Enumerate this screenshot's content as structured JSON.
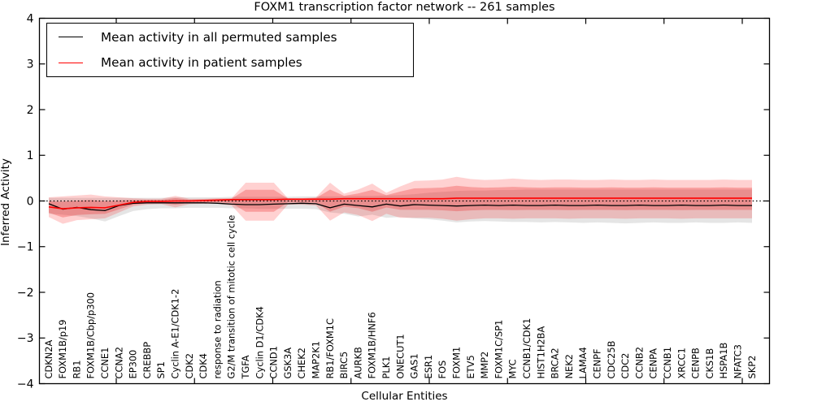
{
  "figure": {
    "title": "FOXM1 transcription factor network -- 261 samples",
    "xlabel": "Cellular Entities",
    "ylabel": "Inferred Activity"
  },
  "legend": {
    "position": "upper left",
    "entries": [
      {
        "label": "Mean activity in all permuted samples",
        "color": "#000000"
      },
      {
        "label": "Mean activity in patient samples",
        "color": "#ff0000"
      }
    ]
  },
  "chart_data": {
    "type": "line",
    "title": "FOXM1 transcription factor network -- 261 samples",
    "xlabel": "Cellular Entities",
    "ylabel": "Inferred Activity",
    "ylim": [
      -4,
      4
    ],
    "yticks": [
      4,
      3,
      2,
      1,
      0,
      -1,
      -2,
      -3,
      -4
    ],
    "grid": false,
    "legend_position": "upper left",
    "n_samples": 261,
    "zero_line": {
      "y": 0,
      "style": "dotted",
      "color": "#000000"
    },
    "categories": [
      "CDKN2A",
      "FOXM1B/p19",
      "RB1",
      "FOXM1B/Cbp/p300",
      "CCNE1",
      "CCNA2",
      "EP300",
      "CREBBP",
      "SP1",
      "Cyclin A-E1/CDK1-2",
      "CDK2",
      "CDK4",
      "response to radiation",
      "G2/M transition of mitotic cell cycle",
      "TGFA",
      "Cyclin D1/CDK4",
      "CCND1",
      "GSK3A",
      "CHEK2",
      "MAP2K1",
      "RB1/FOXM1C",
      "BIRC5",
      "AURKB",
      "FOXM1B/HNF6",
      "PLK1",
      "ONECUT1",
      "GAS1",
      "ESR1",
      "FOS",
      "FOXM1",
      "ETV5",
      "MMP2",
      "FOXM1C/SP1",
      "MYC",
      "CCNB1/CDK1",
      "HIST1H2BA",
      "BRCA2",
      "NEK2",
      "LAMA4",
      "CENPF",
      "CDC25B",
      "CDC2",
      "CCNB2",
      "CENPA",
      "CCNB1",
      "XRCC1",
      "CENPB",
      "CKS1B",
      "HSPA1B",
      "NFATC3",
      "SKP2"
    ],
    "series": [
      {
        "name": "Mean activity in all permuted samples",
        "color": "#000000",
        "style": "solid",
        "values": [
          -0.06,
          -0.18,
          -0.14,
          -0.19,
          -0.21,
          -0.1,
          -0.05,
          -0.04,
          -0.04,
          -0.04,
          -0.04,
          -0.04,
          -0.05,
          -0.07,
          -0.08,
          -0.08,
          -0.07,
          -0.06,
          -0.05,
          -0.06,
          -0.15,
          -0.07,
          -0.1,
          -0.13,
          -0.07,
          -0.11,
          -0.08,
          -0.09,
          -0.1,
          -0.11,
          -0.1,
          -0.09,
          -0.1,
          -0.09,
          -0.1,
          -0.1,
          -0.09,
          -0.1,
          -0.1,
          -0.09,
          -0.1,
          -0.1,
          -0.09,
          -0.1,
          -0.1,
          -0.09,
          -0.1,
          -0.1,
          -0.09,
          -0.1,
          -0.1
        ]
      },
      {
        "name": "Mean activity in patient samples",
        "color": "#ff0000",
        "style": "solid",
        "values": [
          -0.13,
          -0.17,
          -0.15,
          -0.14,
          -0.15,
          -0.09,
          -0.03,
          -0.01,
          -0.01,
          0.0,
          0.0,
          0.01,
          0.02,
          0.03,
          0.03,
          0.03,
          0.03,
          0.04,
          0.04,
          0.04,
          0.04,
          0.05,
          0.05,
          0.05,
          0.05,
          0.05,
          0.05,
          0.05,
          0.05,
          0.06,
          0.06,
          0.06,
          0.06,
          0.06,
          0.06,
          0.06,
          0.06,
          0.06,
          0.06,
          0.06,
          0.06,
          0.06,
          0.06,
          0.06,
          0.06,
          0.06,
          0.06,
          0.06,
          0.06,
          0.06,
          0.06
        ]
      }
    ],
    "bands": [
      {
        "name": "permuted-samples-range",
        "color": "rgba(0,0,0,0.10)",
        "hi": [
          0.07,
          0.07,
          0.07,
          0.07,
          0.07,
          0.07,
          0.07,
          0.07,
          0.07,
          0.08,
          0.08,
          0.08,
          0.08,
          0.09,
          0.09,
          0.09,
          0.09,
          0.09,
          0.1,
          0.1,
          0.1,
          0.1,
          0.11,
          0.11,
          0.12,
          0.13,
          0.15,
          0.18,
          0.2,
          0.22,
          0.23,
          0.23,
          0.24,
          0.24,
          0.25,
          0.25,
          0.25,
          0.25,
          0.25,
          0.25,
          0.25,
          0.25,
          0.25,
          0.25,
          0.25,
          0.25,
          0.25,
          0.25,
          0.25,
          0.25,
          0.25
        ],
        "lo": [
          -0.28,
          -0.3,
          -0.33,
          -0.38,
          -0.45,
          -0.33,
          -0.22,
          -0.18,
          -0.16,
          -0.16,
          -0.15,
          -0.15,
          -0.15,
          -0.16,
          -0.16,
          -0.17,
          -0.17,
          -0.17,
          -0.17,
          -0.18,
          -0.25,
          -0.28,
          -0.34,
          -0.3,
          -0.37,
          -0.35,
          -0.38,
          -0.4,
          -0.43,
          -0.47,
          -0.45,
          -0.44,
          -0.45,
          -0.46,
          -0.46,
          -0.47,
          -0.46,
          -0.47,
          -0.48,
          -0.47,
          -0.48,
          -0.49,
          -0.48,
          -0.47,
          -0.48,
          -0.48,
          -0.47,
          -0.48,
          -0.48,
          -0.47,
          -0.48
        ]
      },
      {
        "name": "patient-samples-range",
        "color": "rgba(255,0,0,0.18)",
        "inner_color": "rgba(235,40,40,0.30)",
        "inner_scale": 0.58,
        "hi": [
          0.08,
          0.1,
          0.12,
          0.14,
          0.1,
          0.08,
          0.06,
          0.05,
          0.05,
          0.11,
          0.05,
          0.05,
          0.06,
          0.06,
          0.4,
          0.4,
          0.4,
          0.06,
          0.06,
          0.08,
          0.4,
          0.16,
          0.25,
          0.38,
          0.18,
          0.32,
          0.44,
          0.45,
          0.47,
          0.53,
          0.48,
          0.46,
          0.47,
          0.49,
          0.47,
          0.46,
          0.47,
          0.47,
          0.46,
          0.46,
          0.47,
          0.46,
          0.46,
          0.47,
          0.46,
          0.46,
          0.46,
          0.46,
          0.47,
          0.46,
          0.46
        ],
        "lo": [
          -0.35,
          -0.5,
          -0.42,
          -0.4,
          -0.38,
          -0.25,
          -0.12,
          -0.08,
          -0.07,
          -0.14,
          -0.07,
          -0.06,
          -0.06,
          -0.1,
          -0.43,
          -0.43,
          -0.43,
          -0.08,
          -0.08,
          -0.1,
          -0.43,
          -0.25,
          -0.31,
          -0.44,
          -0.28,
          -0.37,
          -0.37,
          -0.37,
          -0.39,
          -0.43,
          -0.4,
          -0.38,
          -0.38,
          -0.39,
          -0.38,
          -0.38,
          -0.38,
          -0.39,
          -0.38,
          -0.38,
          -0.38,
          -0.39,
          -0.38,
          -0.38,
          -0.38,
          -0.39,
          -0.38,
          -0.38,
          -0.38,
          -0.38,
          -0.38
        ]
      }
    ]
  }
}
